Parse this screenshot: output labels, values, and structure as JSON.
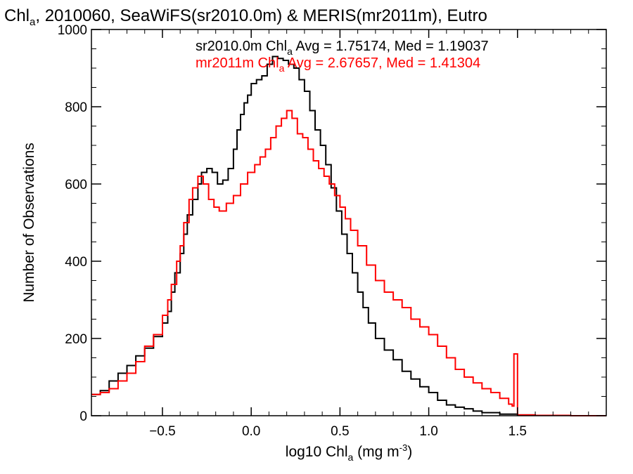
{
  "chart_data": {
    "type": "line",
    "title_main": "Chl",
    "title_sub": "a",
    "title_rest": ", 2010060, SeaWiFS(sr2010.0m) & MERIS(mr2011m), Eutro",
    "xlabel_pre": "log10 Chl",
    "xlabel_sub": "a",
    "xlabel_mid": " (mg m",
    "xlabel_sup": "-3",
    "xlabel_post": ")",
    "ylabel": "Number of Observations",
    "xlim": [
      -0.9,
      2.0
    ],
    "ylim": [
      0,
      1000
    ],
    "x_ticks": [
      -0.5,
      0.0,
      0.5,
      1.0,
      1.5
    ],
    "x_tick_labels": [
      "−0.5",
      "0.0",
      "0.5",
      "1.0",
      "1.5"
    ],
    "y_ticks": [
      0,
      200,
      400,
      600,
      800,
      1000
    ],
    "y_tick_labels": [
      "0",
      "200",
      "400",
      "600",
      "800",
      "1000"
    ],
    "legend": [
      {
        "pre": "sr2010.0m Chl",
        "sub": "a",
        "post": " Avg = 1.75174, Med = 1.19037",
        "color": "#000000"
      },
      {
        "pre": "mr2011m Chl",
        "sub": "a",
        "post": " Avg = 2.67657, Med = 1.41304",
        "color": "#ff0000"
      }
    ],
    "series": [
      {
        "color": "#000000",
        "points": [
          [
            -0.9,
            55
          ],
          [
            -0.85,
            65
          ],
          [
            -0.8,
            90
          ],
          [
            -0.75,
            110
          ],
          [
            -0.7,
            130
          ],
          [
            -0.65,
            155
          ],
          [
            -0.6,
            175
          ],
          [
            -0.55,
            205
          ],
          [
            -0.5,
            240
          ],
          [
            -0.47,
            270
          ],
          [
            -0.45,
            320
          ],
          [
            -0.43,
            370
          ],
          [
            -0.4,
            420
          ],
          [
            -0.38,
            470
          ],
          [
            -0.36,
            520
          ],
          [
            -0.33,
            560
          ],
          [
            -0.3,
            600
          ],
          [
            -0.28,
            630
          ],
          [
            -0.25,
            640
          ],
          [
            -0.22,
            630
          ],
          [
            -0.19,
            600
          ],
          [
            -0.16,
            610
          ],
          [
            -0.13,
            640
          ],
          [
            -0.1,
            690
          ],
          [
            -0.08,
            740
          ],
          [
            -0.06,
            780
          ],
          [
            -0.04,
            810
          ],
          [
            -0.02,
            830
          ],
          [
            0.0,
            860
          ],
          [
            0.03,
            870
          ],
          [
            0.06,
            880
          ],
          [
            0.09,
            910
          ],
          [
            0.12,
            930
          ],
          [
            0.15,
            925
          ],
          [
            0.18,
            920
          ],
          [
            0.21,
            910
          ],
          [
            0.24,
            900
          ],
          [
            0.27,
            870
          ],
          [
            0.3,
            840
          ],
          [
            0.33,
            790
          ],
          [
            0.36,
            740
          ],
          [
            0.39,
            700
          ],
          [
            0.42,
            650
          ],
          [
            0.45,
            590
          ],
          [
            0.48,
            530
          ],
          [
            0.51,
            470
          ],
          [
            0.54,
            420
          ],
          [
            0.57,
            370
          ],
          [
            0.6,
            320
          ],
          [
            0.63,
            280
          ],
          [
            0.66,
            240
          ],
          [
            0.7,
            200
          ],
          [
            0.75,
            170
          ],
          [
            0.8,
            145
          ],
          [
            0.85,
            115
          ],
          [
            0.9,
            95
          ],
          [
            0.95,
            75
          ],
          [
            1.0,
            60
          ],
          [
            1.05,
            40
          ],
          [
            1.1,
            28
          ],
          [
            1.15,
            22
          ],
          [
            1.2,
            18
          ],
          [
            1.25,
            12
          ],
          [
            1.3,
            8
          ],
          [
            1.4,
            4
          ],
          [
            1.5,
            2
          ],
          [
            1.6,
            1
          ],
          [
            1.8,
            0
          ],
          [
            2.0,
            0
          ]
        ]
      },
      {
        "color": "#ff0000",
        "points": [
          [
            -0.9,
            55
          ],
          [
            -0.85,
            60
          ],
          [
            -0.8,
            70
          ],
          [
            -0.75,
            90
          ],
          [
            -0.7,
            110
          ],
          [
            -0.65,
            140
          ],
          [
            -0.6,
            180
          ],
          [
            -0.55,
            210
          ],
          [
            -0.5,
            260
          ],
          [
            -0.47,
            300
          ],
          [
            -0.45,
            340
          ],
          [
            -0.42,
            400
          ],
          [
            -0.4,
            440
          ],
          [
            -0.38,
            500
          ],
          [
            -0.35,
            560
          ],
          [
            -0.33,
            590
          ],
          [
            -0.3,
            620
          ],
          [
            -0.27,
            600
          ],
          [
            -0.24,
            560
          ],
          [
            -0.21,
            540
          ],
          [
            -0.18,
            530
          ],
          [
            -0.14,
            550
          ],
          [
            -0.1,
            570
          ],
          [
            -0.06,
            600
          ],
          [
            -0.02,
            630
          ],
          [
            0.02,
            650
          ],
          [
            0.05,
            670
          ],
          [
            0.08,
            690
          ],
          [
            0.11,
            720
          ],
          [
            0.14,
            750
          ],
          [
            0.17,
            770
          ],
          [
            0.2,
            790
          ],
          [
            0.23,
            770
          ],
          [
            0.26,
            730
          ],
          [
            0.29,
            720
          ],
          [
            0.32,
            690
          ],
          [
            0.35,
            660
          ],
          [
            0.38,
            640
          ],
          [
            0.41,
            620
          ],
          [
            0.44,
            600
          ],
          [
            0.47,
            570
          ],
          [
            0.5,
            540
          ],
          [
            0.53,
            510
          ],
          [
            0.56,
            480
          ],
          [
            0.6,
            440
          ],
          [
            0.65,
            390
          ],
          [
            0.7,
            350
          ],
          [
            0.75,
            320
          ],
          [
            0.8,
            300
          ],
          [
            0.85,
            280
          ],
          [
            0.9,
            250
          ],
          [
            0.95,
            230
          ],
          [
            1.0,
            210
          ],
          [
            1.05,
            180
          ],
          [
            1.1,
            150
          ],
          [
            1.15,
            120
          ],
          [
            1.2,
            100
          ],
          [
            1.25,
            85
          ],
          [
            1.3,
            70
          ],
          [
            1.35,
            60
          ],
          [
            1.4,
            45
          ],
          [
            1.45,
            30
          ],
          [
            1.47,
            25
          ],
          [
            1.48,
            160
          ],
          [
            1.49,
            160
          ],
          [
            1.5,
            2
          ],
          [
            1.6,
            1
          ],
          [
            1.8,
            0
          ],
          [
            2.0,
            0
          ]
        ]
      }
    ]
  }
}
